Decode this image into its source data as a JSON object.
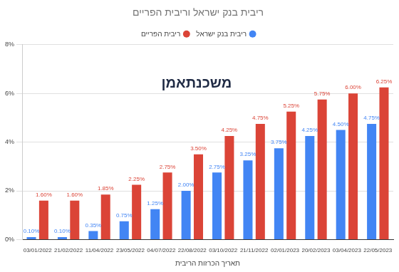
{
  "chart_data": {
    "type": "bar",
    "title": "ריבית בנק ישראל וריבית הפריים",
    "x_label": "תאריך הכרזות הריבית",
    "annotations": [
      "משכנתאמן"
    ],
    "categories": [
      "03/01/2022",
      "21/02/2022",
      "11/04/2022",
      "23/05/2022",
      "04/07/2022",
      "22/08/2022",
      "03/10/2022",
      "21/11/2022",
      "02/01/2023",
      "20/02/2023",
      "03/04/2023",
      "22/05/2023"
    ],
    "series": [
      {
        "name": "ריבית בנק ישראל",
        "color": "#4285f4",
        "values": [
          0.1,
          0.1,
          0.35,
          0.75,
          1.25,
          2.0,
          2.75,
          3.25,
          3.75,
          4.25,
          4.5,
          4.75
        ],
        "value_labels": [
          "0.10%",
          "0.10%",
          "0.35%",
          "0.75%",
          "1.25%",
          "2.00%",
          "2.75%",
          "3.25%",
          "3.75%",
          "4.25%",
          "4.50%",
          "4.75%"
        ]
      },
      {
        "name": "ריבית הפריים",
        "color": "#db4437",
        "values": [
          1.6,
          1.6,
          1.85,
          2.25,
          2.75,
          3.5,
          4.25,
          4.75,
          5.25,
          5.75,
          6.0,
          6.25
        ],
        "value_labels": [
          "1.60%",
          "1.60%",
          "1.85%",
          "2.25%",
          "2.75%",
          "3.50%",
          "4.25%",
          "4.75%",
          "5.25%",
          "5.75%",
          "6.00%",
          "6.25%"
        ]
      }
    ],
    "ylim": [
      0,
      8
    ],
    "yticks": [
      {
        "value": 0,
        "label": "0%"
      },
      {
        "value": 2,
        "label": "2%"
      },
      {
        "value": 4,
        "label": "4%"
      },
      {
        "value": 6,
        "label": "6%"
      },
      {
        "value": 8,
        "label": "8%"
      }
    ],
    "grid": true,
    "legend": "top",
    "data_labels": true
  }
}
